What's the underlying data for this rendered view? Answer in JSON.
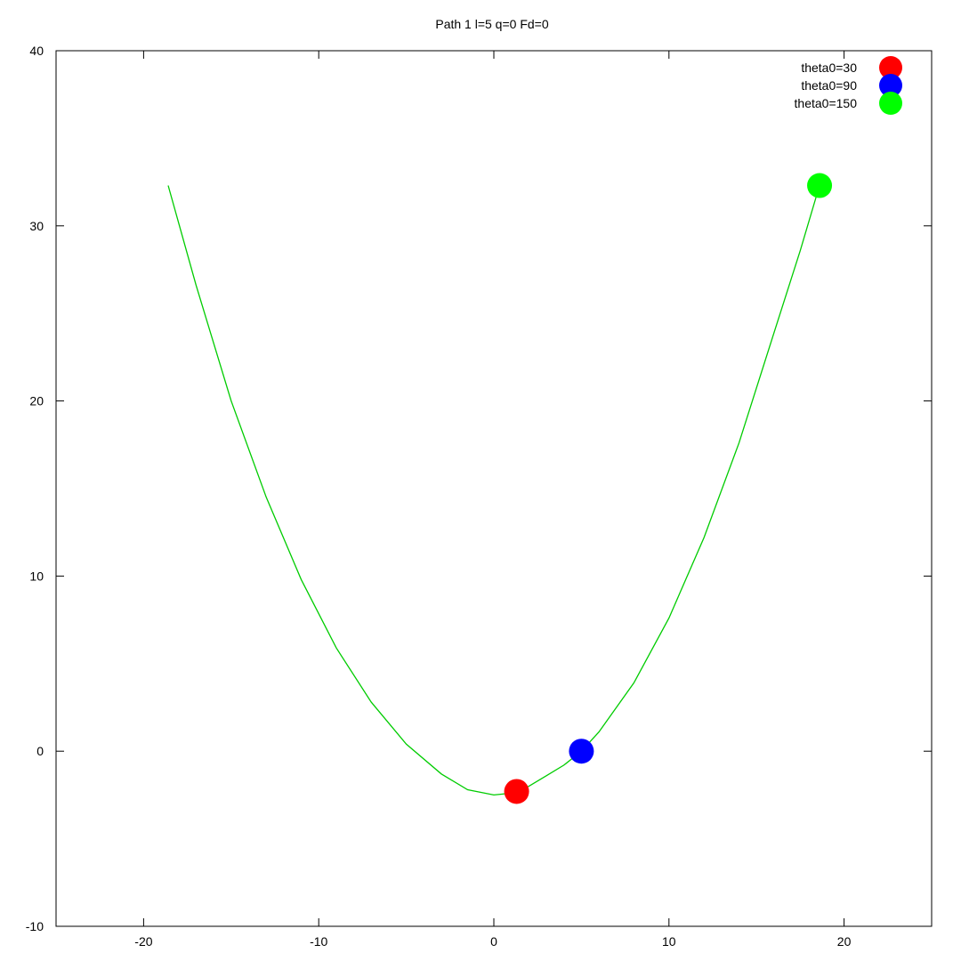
{
  "chart_data": {
    "type": "scatter",
    "title": "Path 1 l=5 q=0 Fd=0",
    "xlabel": "",
    "ylabel": "",
    "xlim": [
      -25,
      25
    ],
    "ylim": [
      -10,
      40
    ],
    "x_ticks": [
      -20,
      -10,
      0,
      10,
      20
    ],
    "y_ticks": [
      -10,
      0,
      10,
      20,
      30,
      40
    ],
    "x_tick_labels": [
      "-20",
      "-10",
      "0",
      "10",
      "20"
    ],
    "y_tick_labels": [
      "-10",
      "0",
      "10",
      "20",
      "30",
      "40"
    ],
    "grid": false,
    "legend_position": "top-right",
    "curve": {
      "color": "#00cc00",
      "points": [
        [
          -18.6,
          32.3
        ],
        [
          -17.0,
          26.6
        ],
        [
          -15.0,
          20.0
        ],
        [
          -13.0,
          14.5
        ],
        [
          -11.0,
          9.8
        ],
        [
          -9.0,
          5.9
        ],
        [
          -7.0,
          2.8
        ],
        [
          -5.0,
          0.4
        ],
        [
          -3.0,
          -1.3
        ],
        [
          -1.5,
          -2.2
        ],
        [
          0.0,
          -2.5
        ],
        [
          1.0,
          -2.4
        ],
        [
          2.0,
          -2.0
        ],
        [
          3.0,
          -1.4
        ],
        [
          4.0,
          -0.8
        ],
        [
          5.0,
          0.0
        ],
        [
          6.0,
          1.1
        ],
        [
          8.0,
          3.9
        ],
        [
          10.0,
          7.6
        ],
        [
          12.0,
          12.2
        ],
        [
          14.0,
          17.6
        ],
        [
          16.0,
          23.9
        ],
        [
          17.5,
          28.6
        ],
        [
          18.6,
          32.3
        ]
      ]
    },
    "series": [
      {
        "name": "theta0=30",
        "color": "#ff0000",
        "x": [
          1.3
        ],
        "y": [
          -2.3
        ]
      },
      {
        "name": "theta0=90",
        "color": "#0000ff",
        "x": [
          5.0
        ],
        "y": [
          0.0
        ]
      },
      {
        "name": "theta0=150",
        "color": "#00ff00",
        "x": [
          18.6
        ],
        "y": [
          32.3
        ]
      }
    ]
  }
}
